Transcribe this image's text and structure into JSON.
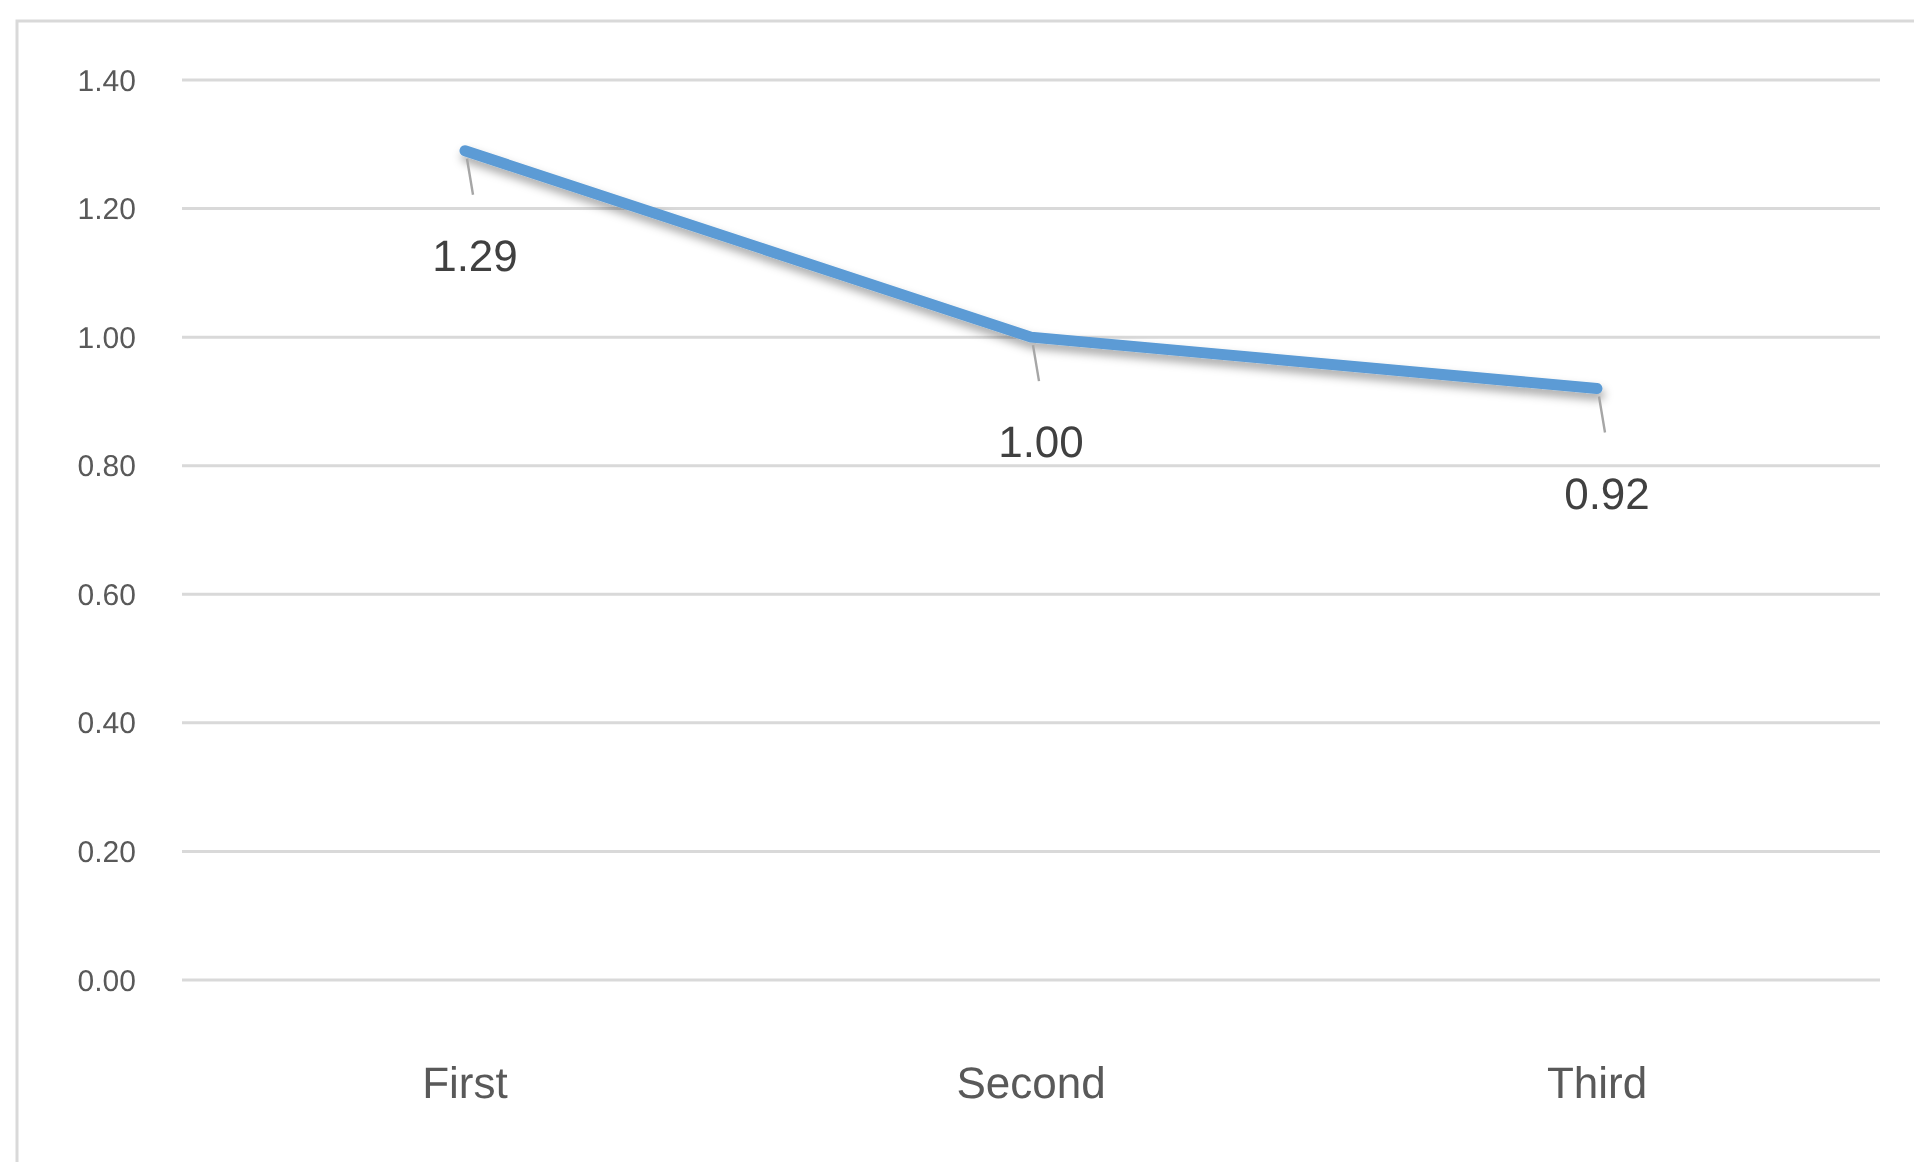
{
  "chart_data": {
    "type": "line",
    "categories": [
      "First",
      "Second",
      "Third"
    ],
    "series": [
      {
        "color": "#5b9bd5",
        "values": [
          1.29,
          1.0,
          0.92
        ],
        "value_labels": [
          "1.29",
          "1.00",
          "0.92"
        ]
      }
    ],
    "ylim": [
      0,
      1.4
    ],
    "yticks": [
      {
        "value": 0,
        "label": "0.00"
      },
      {
        "value": 0.2,
        "label": "0.20"
      },
      {
        "value": 0.4,
        "label": "0.40"
      },
      {
        "value": 0.6,
        "label": "0.60"
      },
      {
        "value": 0.8,
        "label": "0.80"
      },
      {
        "value": 1.0,
        "label": "1.00"
      },
      {
        "value": 1.2,
        "label": "1.20"
      },
      {
        "value": 1.4,
        "label": "1.40"
      }
    ],
    "grid": "y"
  }
}
